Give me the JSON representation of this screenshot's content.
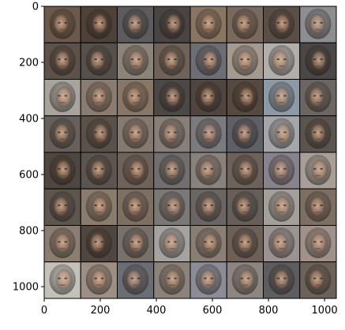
{
  "figure": {
    "image_extent": {
      "x": [
        0,
        1042
      ],
      "y": [
        1042,
        0
      ]
    },
    "grid": {
      "rows": 8,
      "cols": 8
    },
    "content": "generated-face-sample-tiles",
    "border_color": "#000000",
    "tile_tones": [
      [
        "#6b5a4c",
        "#4e4238",
        "#5c5b5e",
        "#4a4543",
        "#8a7563",
        "#7a6a5e",
        "#5a4f47",
        "#8d8d92"
      ],
      [
        "#5d5148",
        "#57504a",
        "#8c8479",
        "#6e6259",
        "#6d6e75",
        "#a49a90",
        "#b1aeab",
        "#4a4746"
      ],
      [
        "#a8a39d",
        "#8c7c70",
        "#897766",
        "#4c4846",
        "#50463f",
        "#56493f",
        "#8c9aa8",
        "#6c6662"
      ],
      [
        "#67605a",
        "#5a514b",
        "#86796f",
        "#877f78",
        "#7b7a7f",
        "#5f5f67",
        "#a5a6aa",
        "#5c554f"
      ],
      [
        "#4f4640",
        "#5c544e",
        "#6f6359",
        "#706e6e",
        "#89817b",
        "#6c625a",
        "#87828d",
        "#a8a098"
      ],
      [
        "#5d564f",
        "#8b7b6c",
        "#7e6f63",
        "#7c7875",
        "#6b6664",
        "#665e59",
        "#a3a099",
        "#7d6f64"
      ],
      [
        "#8b7d70",
        "#4f463f",
        "#78706a",
        "#a5a3a2",
        "#8a7f75",
        "#6c6058",
        "#9a9392",
        "#a0928a"
      ],
      [
        "#c4c0ba",
        "#9d8f83",
        "#6b6d74",
        "#8d837a",
        "#8b8c97",
        "#8c8581",
        "#5d5c5e",
        "#6c6259"
      ]
    ],
    "x_ticks": [
      0,
      200,
      400,
      600,
      800,
      1000
    ],
    "y_ticks": [
      0,
      200,
      400,
      600,
      800,
      1000
    ]
  }
}
